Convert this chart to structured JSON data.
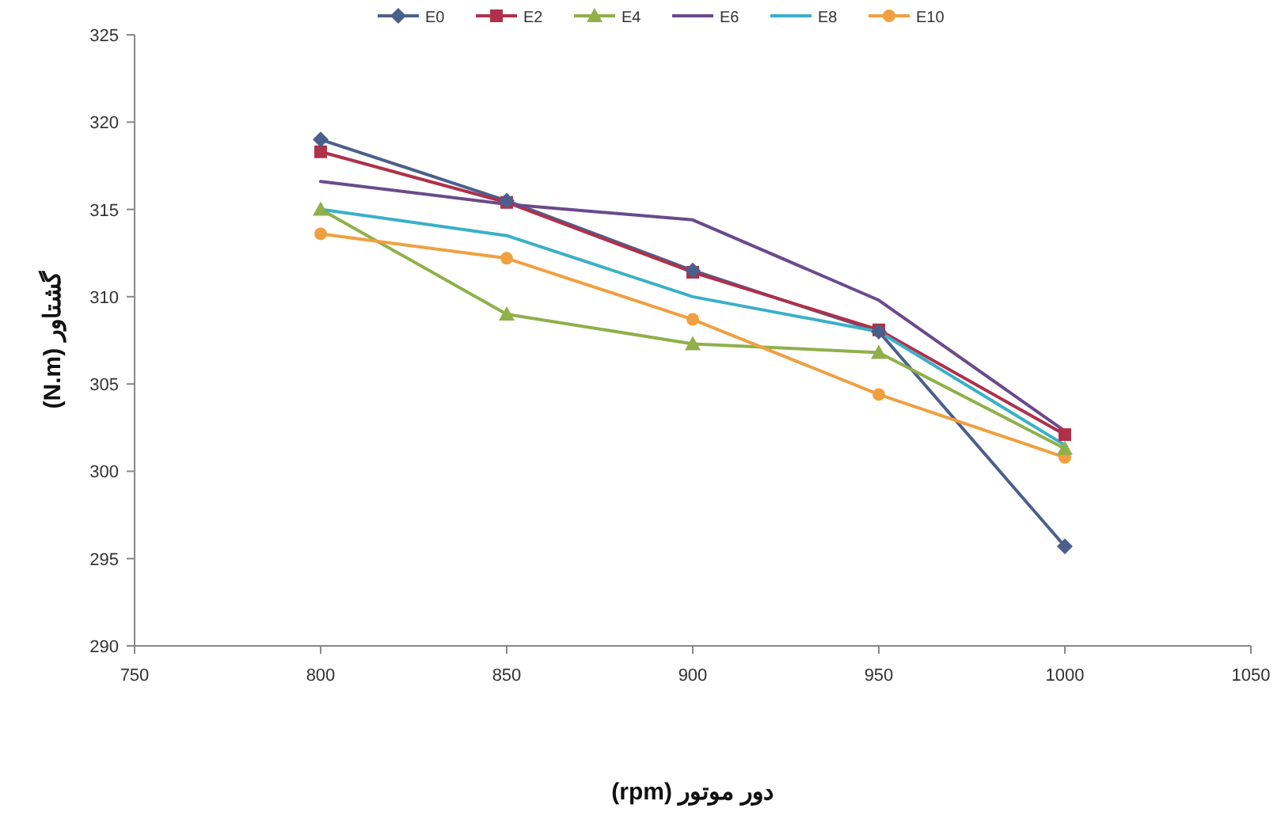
{
  "chart_data": {
    "type": "line",
    "xlabel": "دور موتور (rpm)",
    "ylabel": "گشتاور (N.m)",
    "x": [
      800,
      850,
      900,
      950,
      1000
    ],
    "xlim": [
      750,
      1050
    ],
    "xticks": [
      750,
      800,
      850,
      900,
      950,
      1000,
      1050
    ],
    "ylim": [
      290,
      325
    ],
    "yticks": [
      290,
      295,
      300,
      305,
      310,
      315,
      320,
      325
    ],
    "legend": "top",
    "series": [
      {
        "name": "E0",
        "color": "#4a5f8c",
        "marker": "diamond",
        "values": [
          319,
          315.5,
          311.5,
          308,
          295.7
        ]
      },
      {
        "name": "E2",
        "color": "#b0304a",
        "marker": "square",
        "values": [
          318.3,
          315.4,
          311.4,
          308.1,
          302.1
        ]
      },
      {
        "name": "E4",
        "color": "#8fb04a",
        "marker": "triangle",
        "values": [
          315,
          309,
          307.3,
          306.8,
          301.3
        ]
      },
      {
        "name": "E6",
        "color": "#6a4a8c",
        "marker": "none",
        "values": [
          316.6,
          315.3,
          314.4,
          309.8,
          302.3
        ]
      },
      {
        "name": "E8",
        "color": "#3ab0c8",
        "marker": "none",
        "values": [
          315,
          313.5,
          310,
          308,
          301.5
        ]
      },
      {
        "name": "E10",
        "color": "#f0a040",
        "marker": "circle",
        "values": [
          313.6,
          312.2,
          308.7,
          304.4,
          300.8
        ]
      }
    ]
  }
}
